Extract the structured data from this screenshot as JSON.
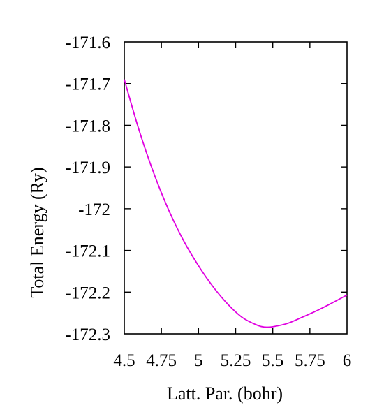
{
  "chart_data": {
    "type": "line",
    "title": "",
    "xlabel": "Latt. Par. (bohr)",
    "ylabel": "Total Energy (Ry)",
    "xlim": [
      4.5,
      6.0
    ],
    "ylim": [
      -172.3,
      -171.6
    ],
    "x_ticks": [
      4.5,
      4.75,
      5.0,
      5.25,
      5.5,
      5.75,
      6.0
    ],
    "x_tick_labels": [
      "4.5",
      "4.75",
      "5",
      "5.25",
      "5.5",
      "5.75",
      "6"
    ],
    "y_ticks": [
      -171.6,
      -171.7,
      -171.8,
      -171.9,
      -172.0,
      -172.1,
      -172.2,
      -172.3
    ],
    "y_tick_labels": [
      "-171.6",
      "-171.7",
      "-171.8",
      "-171.9",
      "-172",
      "-172.1",
      "-172.2",
      "-172.3"
    ],
    "grid": false,
    "legend": "none",
    "series": [
      {
        "color": "#e000e0",
        "x": [
          4.5,
          4.6,
          4.7,
          4.8,
          4.9,
          5.0,
          5.1,
          5.2,
          5.3,
          5.4,
          5.45,
          5.5,
          5.6,
          5.7,
          5.8,
          5.9,
          6.0
        ],
        "y": [
          -171.69,
          -171.812,
          -171.916,
          -172.004,
          -172.077,
          -172.137,
          -172.188,
          -172.23,
          -172.262,
          -172.28,
          -172.284,
          -172.283,
          -172.275,
          -172.26,
          -172.244,
          -172.226,
          -172.207
        ]
      }
    ]
  }
}
